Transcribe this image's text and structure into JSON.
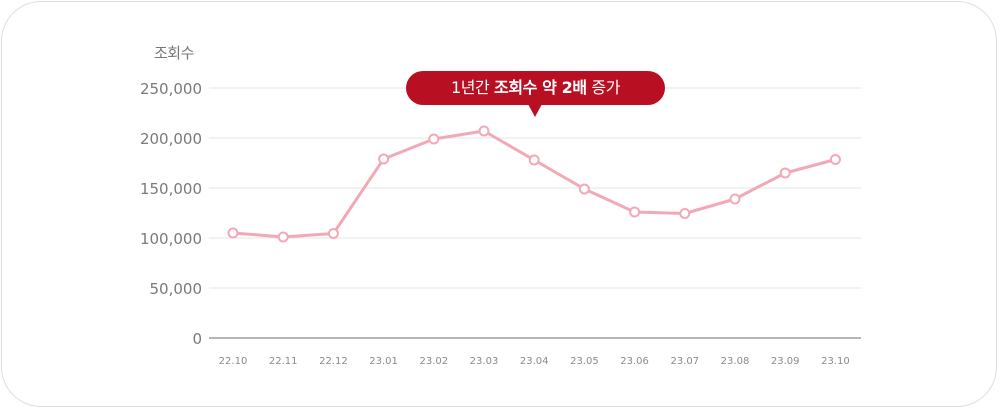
{
  "chart_data": {
    "type": "line",
    "ylabel": "조회수",
    "categories": [
      "22.10",
      "22.11",
      "22.12",
      "23.01",
      "23.02",
      "23.03",
      "23.04",
      "23.05",
      "23.06",
      "23.07",
      "23.08",
      "23.09",
      "23.10"
    ],
    "series": [
      {
        "values": [
          105000,
          101000,
          104500,
          179000,
          199000,
          207000,
          178000,
          149000,
          126000,
          124500,
          139000,
          165000,
          178500
        ]
      }
    ],
    "yticks": [
      "0",
      "50,000",
      "100,000",
      "150,000",
      "200,000",
      "250,000"
    ],
    "ylim": [
      0,
      250000
    ],
    "grid": true,
    "line_color": "#f2a9b6",
    "marker_fill": "#ffffff",
    "annotation": {
      "prefix": "1년간 ",
      "bold": "조회수 약 2배",
      "suffix": " 증가",
      "color": "#b80f22",
      "text_color": "#ffffff"
    }
  }
}
